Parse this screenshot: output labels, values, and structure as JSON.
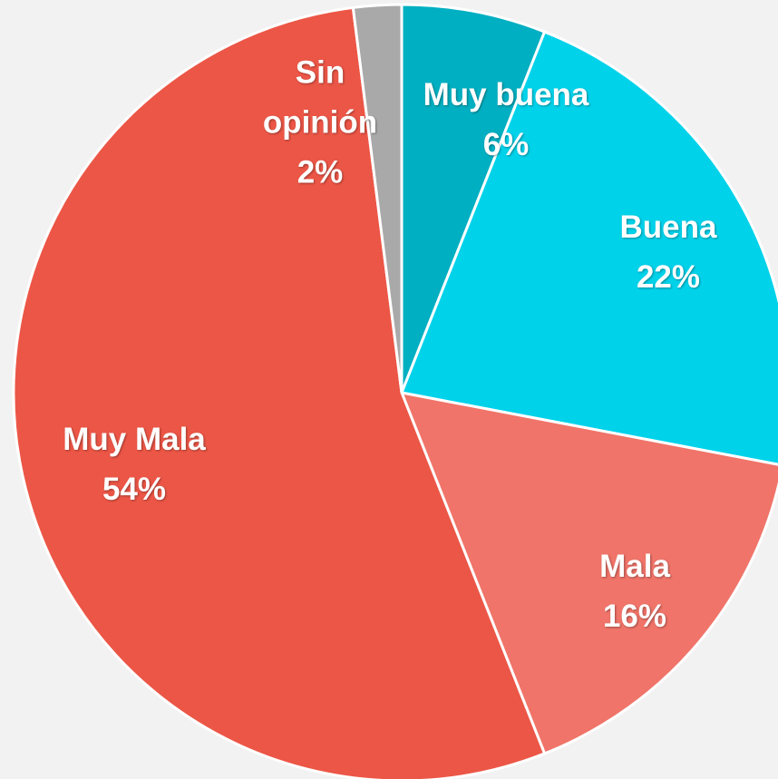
{
  "chart_data": {
    "type": "pie",
    "categories": [
      "Muy buena",
      "Buena",
      "Mala",
      "Muy Mala",
      "Sin opinión"
    ],
    "values": [
      6,
      22,
      16,
      54,
      2
    ],
    "value_labels": [
      "6%",
      "22%",
      "16%",
      "54%",
      "2%"
    ],
    "colors": [
      "#00afc1",
      "#00d2ea",
      "#f07469",
      "#ec5646",
      "#a9a9a9"
    ]
  }
}
